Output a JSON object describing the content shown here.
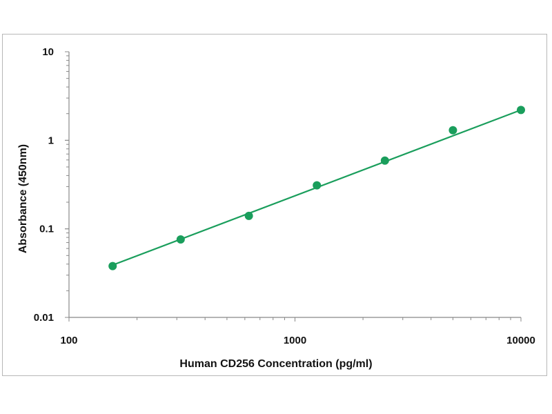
{
  "chart_data": {
    "type": "scatter",
    "xlabel": "Human CD256 Concentration (pg/ml)",
    "ylabel": "Absorbance (450nm)",
    "xscale": "log",
    "yscale": "log",
    "xlim": [
      100,
      10000
    ],
    "ylim": [
      0.01,
      10
    ],
    "xticks": [
      "100",
      "1000",
      "10000"
    ],
    "yticks": [
      "0.01",
      "0.1",
      "1",
      "10"
    ],
    "grid": false,
    "legend": "none",
    "series": [
      {
        "color": "#1a9e5c",
        "points": [
          {
            "x": 156,
            "y": 0.038
          },
          {
            "x": 312,
            "y": 0.076
          },
          {
            "x": 625,
            "y": 0.14
          },
          {
            "x": 1250,
            "y": 0.31
          },
          {
            "x": 2500,
            "y": 0.59
          },
          {
            "x": 5000,
            "y": 1.3
          },
          {
            "x": 10000,
            "y": 2.2
          }
        ],
        "fit_line": {
          "type": "linear-log-log",
          "from": {
            "x": 156,
            "y": 0.039
          },
          "to": {
            "x": 10000,
            "y": 2.2
          }
        }
      }
    ]
  }
}
